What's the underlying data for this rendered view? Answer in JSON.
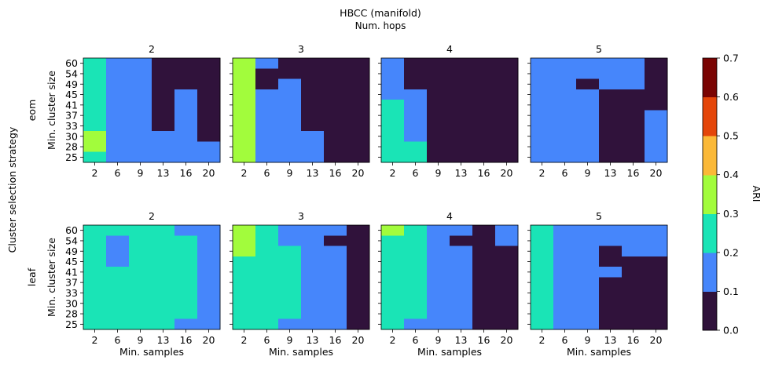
{
  "figure": {
    "title": "HBCC (manifold)",
    "subtitle": "Num. hops",
    "row_axis_label": "Cluster selection strategy",
    "colorbar_label": "ARI"
  },
  "chart_data": {
    "type": "heatmap",
    "x_ticks": [
      "2",
      "6",
      "9",
      "13",
      "16",
      "20"
    ],
    "y_ticks": [
      "25",
      "28",
      "30",
      "33",
      "37",
      "41",
      "45",
      "49",
      "54",
      "60"
    ],
    "xlabel": "Min. samples",
    "ylabel": "Min. cluster size",
    "colorbar": {
      "label": "ARI",
      "range": [
        0,
        0.7
      ],
      "ticks": [
        "0.0",
        "0.1",
        "0.2",
        "0.3",
        "0.4",
        "0.5",
        "0.6",
        "0.7"
      ],
      "colors": [
        "#30123b",
        "#4686fb",
        "#1ae4b6",
        "#a2fc3c",
        "#fbb938",
        "#e4460a",
        "#7a0403"
      ]
    },
    "row_labels": [
      "eom",
      "leaf"
    ],
    "col_labels": [
      "2",
      "3",
      "4",
      "5"
    ],
    "panels": [
      {
        "row": "eom",
        "hops": "2",
        "values": [
          [
            0.25,
            0.15,
            0.15,
            0.05,
            0.05,
            0.05
          ],
          [
            0.25,
            0.15,
            0.15,
            0.05,
            0.05,
            0.05
          ],
          [
            0.25,
            0.15,
            0.15,
            0.05,
            0.05,
            0.05
          ],
          [
            0.25,
            0.15,
            0.15,
            0.05,
            0.15,
            0.05
          ],
          [
            0.25,
            0.15,
            0.15,
            0.05,
            0.15,
            0.05
          ],
          [
            0.25,
            0.15,
            0.15,
            0.05,
            0.15,
            0.05
          ],
          [
            0.25,
            0.15,
            0.15,
            0.05,
            0.15,
            0.05
          ],
          [
            0.35,
            0.15,
            0.15,
            0.15,
            0.15,
            0.05
          ],
          [
            0.35,
            0.15,
            0.15,
            0.15,
            0.15,
            0.15
          ],
          [
            0.25,
            0.15,
            0.15,
            0.15,
            0.15,
            0.15
          ]
        ]
      },
      {
        "row": "eom",
        "hops": "3",
        "values": [
          [
            0.35,
            0.15,
            0.05,
            0.05,
            0.05,
            0.05
          ],
          [
            0.35,
            0.05,
            0.05,
            0.05,
            0.05,
            0.05
          ],
          [
            0.35,
            0.05,
            0.15,
            0.05,
            0.05,
            0.05
          ],
          [
            0.35,
            0.15,
            0.15,
            0.05,
            0.05,
            0.05
          ],
          [
            0.35,
            0.15,
            0.15,
            0.05,
            0.05,
            0.05
          ],
          [
            0.35,
            0.15,
            0.15,
            0.05,
            0.05,
            0.05
          ],
          [
            0.35,
            0.15,
            0.15,
            0.05,
            0.05,
            0.05
          ],
          [
            0.35,
            0.15,
            0.15,
            0.15,
            0.05,
            0.05
          ],
          [
            0.35,
            0.15,
            0.15,
            0.15,
            0.05,
            0.05
          ],
          [
            0.35,
            0.15,
            0.15,
            0.15,
            0.05,
            0.05
          ]
        ]
      },
      {
        "row": "eom",
        "hops": "4",
        "values": [
          [
            0.15,
            0.05,
            0.05,
            0.05,
            0.05,
            0.05
          ],
          [
            0.15,
            0.05,
            0.05,
            0.05,
            0.05,
            0.05
          ],
          [
            0.15,
            0.05,
            0.05,
            0.05,
            0.05,
            0.05
          ],
          [
            0.15,
            0.15,
            0.05,
            0.05,
            0.05,
            0.05
          ],
          [
            0.25,
            0.15,
            0.05,
            0.05,
            0.05,
            0.05
          ],
          [
            0.25,
            0.15,
            0.05,
            0.05,
            0.05,
            0.05
          ],
          [
            0.25,
            0.15,
            0.05,
            0.05,
            0.05,
            0.05
          ],
          [
            0.25,
            0.15,
            0.05,
            0.05,
            0.05,
            0.05
          ],
          [
            0.25,
            0.25,
            0.05,
            0.05,
            0.05,
            0.05
          ],
          [
            0.25,
            0.25,
            0.05,
            0.05,
            0.05,
            0.05
          ]
        ]
      },
      {
        "row": "eom",
        "hops": "5",
        "values": [
          [
            0.15,
            0.15,
            0.15,
            0.15,
            0.15,
            0.05
          ],
          [
            0.15,
            0.15,
            0.15,
            0.15,
            0.15,
            0.05
          ],
          [
            0.15,
            0.15,
            0.05,
            0.15,
            0.15,
            0.05
          ],
          [
            0.15,
            0.15,
            0.15,
            0.05,
            0.05,
            0.05
          ],
          [
            0.15,
            0.15,
            0.15,
            0.05,
            0.05,
            0.05
          ],
          [
            0.15,
            0.15,
            0.15,
            0.05,
            0.05,
            0.15
          ],
          [
            0.15,
            0.15,
            0.15,
            0.05,
            0.05,
            0.15
          ],
          [
            0.15,
            0.15,
            0.15,
            0.05,
            0.05,
            0.15
          ],
          [
            0.15,
            0.15,
            0.15,
            0.05,
            0.05,
            0.15
          ],
          [
            0.15,
            0.15,
            0.15,
            0.05,
            0.05,
            0.15
          ]
        ]
      },
      {
        "row": "leaf",
        "hops": "2",
        "values": [
          [
            0.25,
            0.25,
            0.25,
            0.25,
            0.15,
            0.15
          ],
          [
            0.25,
            0.15,
            0.25,
            0.25,
            0.25,
            0.15
          ],
          [
            0.25,
            0.15,
            0.25,
            0.25,
            0.25,
            0.15
          ],
          [
            0.25,
            0.15,
            0.25,
            0.25,
            0.25,
            0.15
          ],
          [
            0.25,
            0.25,
            0.25,
            0.25,
            0.25,
            0.15
          ],
          [
            0.25,
            0.25,
            0.25,
            0.25,
            0.25,
            0.15
          ],
          [
            0.25,
            0.25,
            0.25,
            0.25,
            0.25,
            0.15
          ],
          [
            0.25,
            0.25,
            0.25,
            0.25,
            0.25,
            0.15
          ],
          [
            0.25,
            0.25,
            0.25,
            0.25,
            0.25,
            0.15
          ],
          [
            0.25,
            0.25,
            0.25,
            0.25,
            0.15,
            0.15
          ]
        ]
      },
      {
        "row": "leaf",
        "hops": "3",
        "values": [
          [
            0.35,
            0.25,
            0.15,
            0.15,
            0.15,
            0.05
          ],
          [
            0.35,
            0.25,
            0.15,
            0.15,
            0.05,
            0.05
          ],
          [
            0.35,
            0.25,
            0.25,
            0.15,
            0.15,
            0.05
          ],
          [
            0.25,
            0.25,
            0.25,
            0.15,
            0.15,
            0.05
          ],
          [
            0.25,
            0.25,
            0.25,
            0.15,
            0.15,
            0.05
          ],
          [
            0.25,
            0.25,
            0.25,
            0.15,
            0.15,
            0.05
          ],
          [
            0.25,
            0.25,
            0.25,
            0.15,
            0.15,
            0.05
          ],
          [
            0.25,
            0.25,
            0.25,
            0.15,
            0.15,
            0.05
          ],
          [
            0.25,
            0.25,
            0.25,
            0.15,
            0.15,
            0.05
          ],
          [
            0.25,
            0.25,
            0.15,
            0.15,
            0.15,
            0.05
          ]
        ]
      },
      {
        "row": "leaf",
        "hops": "4",
        "values": [
          [
            0.35,
            0.25,
            0.15,
            0.15,
            0.05,
            0.15
          ],
          [
            0.25,
            0.25,
            0.15,
            0.05,
            0.05,
            0.15
          ],
          [
            0.25,
            0.25,
            0.15,
            0.15,
            0.05,
            0.05
          ],
          [
            0.25,
            0.25,
            0.15,
            0.15,
            0.05,
            0.05
          ],
          [
            0.25,
            0.25,
            0.15,
            0.15,
            0.05,
            0.05
          ],
          [
            0.25,
            0.25,
            0.15,
            0.15,
            0.05,
            0.05
          ],
          [
            0.25,
            0.25,
            0.15,
            0.15,
            0.05,
            0.05
          ],
          [
            0.25,
            0.25,
            0.15,
            0.15,
            0.05,
            0.05
          ],
          [
            0.25,
            0.25,
            0.15,
            0.15,
            0.05,
            0.05
          ],
          [
            0.25,
            0.15,
            0.15,
            0.15,
            0.05,
            0.05
          ]
        ]
      },
      {
        "row": "leaf",
        "hops": "5",
        "values": [
          [
            0.25,
            0.15,
            0.15,
            0.15,
            0.15,
            0.15
          ],
          [
            0.25,
            0.15,
            0.15,
            0.15,
            0.15,
            0.15
          ],
          [
            0.25,
            0.15,
            0.15,
            0.05,
            0.15,
            0.15
          ],
          [
            0.25,
            0.15,
            0.15,
            0.05,
            0.05,
            0.05
          ],
          [
            0.25,
            0.15,
            0.15,
            0.15,
            0.05,
            0.05
          ],
          [
            0.25,
            0.15,
            0.15,
            0.05,
            0.05,
            0.05
          ],
          [
            0.25,
            0.15,
            0.15,
            0.05,
            0.05,
            0.05
          ],
          [
            0.25,
            0.15,
            0.15,
            0.05,
            0.05,
            0.05
          ],
          [
            0.25,
            0.15,
            0.15,
            0.05,
            0.05,
            0.05
          ],
          [
            0.25,
            0.15,
            0.15,
            0.05,
            0.05,
            0.05
          ]
        ]
      }
    ]
  }
}
